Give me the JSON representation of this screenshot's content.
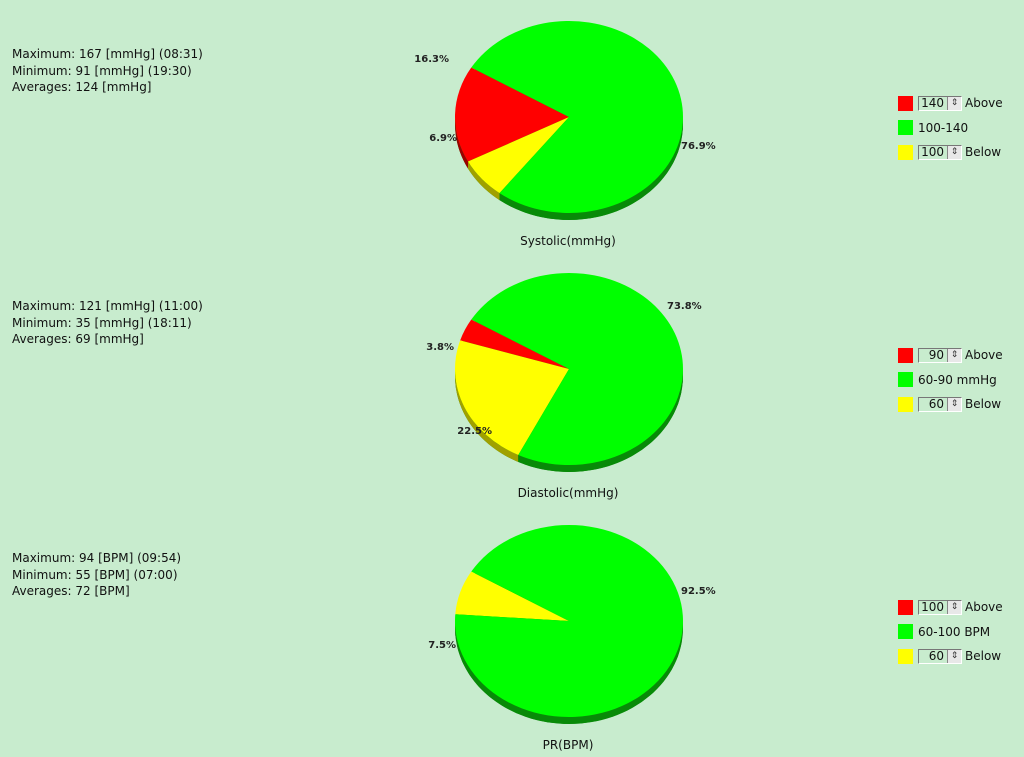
{
  "colors": {
    "red": "#ff0000",
    "green": "#00ff00",
    "yellow": "#ffff00",
    "bg": "#c8ecce",
    "green_edge": "#088a08",
    "red_edge": "#9a0000",
    "yellow_edge": "#a0a000"
  },
  "sections": [
    {
      "stats": {
        "max": "Maximum: 167 [mmHg] (08:31)",
        "min": "Minimum: 91 [mmHg] (19:30)",
        "avg": "Averages: 124 [mmHg]"
      },
      "caption": "Systolic(mmHg)",
      "legend": {
        "above": {
          "value": "140",
          "label": "Above"
        },
        "middle": {
          "label": "100-140"
        },
        "below": {
          "value": "100",
          "label": "Below"
        }
      }
    },
    {
      "stats": {
        "max": "Maximum: 121 [mmHg] (11:00)",
        "min": "Minimum: 35 [mmHg] (18:11)",
        "avg": "Averages: 69 [mmHg]"
      },
      "caption": "Diastolic(mmHg)",
      "legend": {
        "above": {
          "value": "90",
          "label": "Above"
        },
        "middle": {
          "label": "60-90 mmHg"
        },
        "below": {
          "value": "60",
          "label": "Below"
        }
      }
    },
    {
      "stats": {
        "max": "Maximum: 94 [BPM] (09:54)",
        "min": "Minimum: 55 [BPM] (07:00)",
        "avg": "Averages: 72 [BPM]"
      },
      "caption": "PR(BPM)",
      "legend": {
        "above": {
          "value": "100",
          "label": "Above"
        },
        "middle": {
          "label": "60-100 BPM"
        },
        "below": {
          "value": "60",
          "label": "Below"
        }
      }
    }
  ],
  "chart_data": [
    {
      "type": "pie",
      "title": "Systolic(mmHg)",
      "categories": [
        "Above",
        "100-140",
        "Below"
      ],
      "values": [
        16.3,
        76.9,
        6.9
      ],
      "labels": [
        "16.3%",
        "76.9%",
        "6.9%"
      ],
      "colors": [
        "#ff0000",
        "#00ff00",
        "#ffff00"
      ]
    },
    {
      "type": "pie",
      "title": "Diastolic(mmHg)",
      "categories": [
        "Above",
        "60-90 mmHg",
        "Below"
      ],
      "values": [
        3.8,
        73.8,
        22.5
      ],
      "labels": [
        "3.8%",
        "73.8%",
        "22.5%"
      ],
      "colors": [
        "#ff0000",
        "#00ff00",
        "#ffff00"
      ]
    },
    {
      "type": "pie",
      "title": "PR(BPM)",
      "categories": [
        "Above",
        "60-100 BPM",
        "Below"
      ],
      "values": [
        0,
        92.5,
        7.5
      ],
      "labels": [
        "",
        "92.5%",
        "7.5%"
      ],
      "colors": [
        "#ff0000",
        "#00ff00",
        "#ffff00"
      ]
    }
  ]
}
